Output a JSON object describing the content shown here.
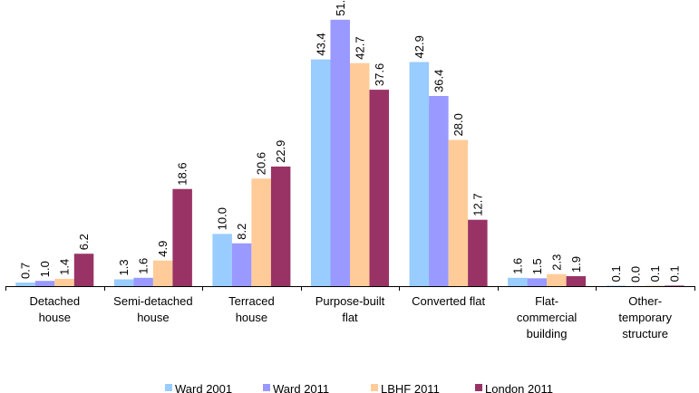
{
  "chart_data": {
    "type": "bar",
    "title": "",
    "xlabel": "",
    "ylabel": "",
    "ylim": [
      0,
      52
    ],
    "grid": false,
    "legend_position": "bottom",
    "categories": [
      [
        "Detached",
        "house"
      ],
      [
        "Semi-detached",
        "house"
      ],
      [
        "Terraced",
        "house"
      ],
      [
        "Purpose-built",
        "flat"
      ],
      [
        "Converted flat"
      ],
      [
        "Flat-",
        "commercial",
        "building"
      ],
      [
        "Other-",
        "temporary",
        "structure"
      ]
    ],
    "series": [
      {
        "name": "Ward 2001",
        "color": "#99CCFF",
        "values": [
          0.7,
          1.3,
          10.0,
          43.4,
          42.9,
          1.6,
          0.1
        ],
        "labels": [
          "0.7",
          "1.3",
          "10.0",
          "43.4",
          "42.9",
          "1.6",
          "0.1"
        ]
      },
      {
        "name": "Ward 2011",
        "color": "#9999FF",
        "values": [
          1.0,
          1.6,
          8.2,
          51.0,
          36.4,
          1.5,
          0.0
        ],
        "labels": [
          "1.0",
          "1.6",
          "8.2",
          "51.",
          "36.4",
          "1.5",
          "0.0"
        ]
      },
      {
        "name": "LBHF 2011",
        "color": "#FFCC99",
        "values": [
          1.4,
          4.9,
          20.6,
          42.7,
          28.0,
          2.3,
          0.1
        ],
        "labels": [
          "1.4",
          "4.9",
          "20.6",
          "42.7",
          "28.0",
          "2.3",
          "0.1"
        ]
      },
      {
        "name": "London 2011",
        "color": "#993366",
        "values": [
          6.2,
          18.6,
          22.9,
          37.6,
          12.7,
          1.9,
          0.1
        ],
        "labels": [
          "6.2",
          "18.6",
          "22.9",
          "37.6",
          "12.7",
          "1.9",
          "0.1"
        ]
      }
    ]
  }
}
